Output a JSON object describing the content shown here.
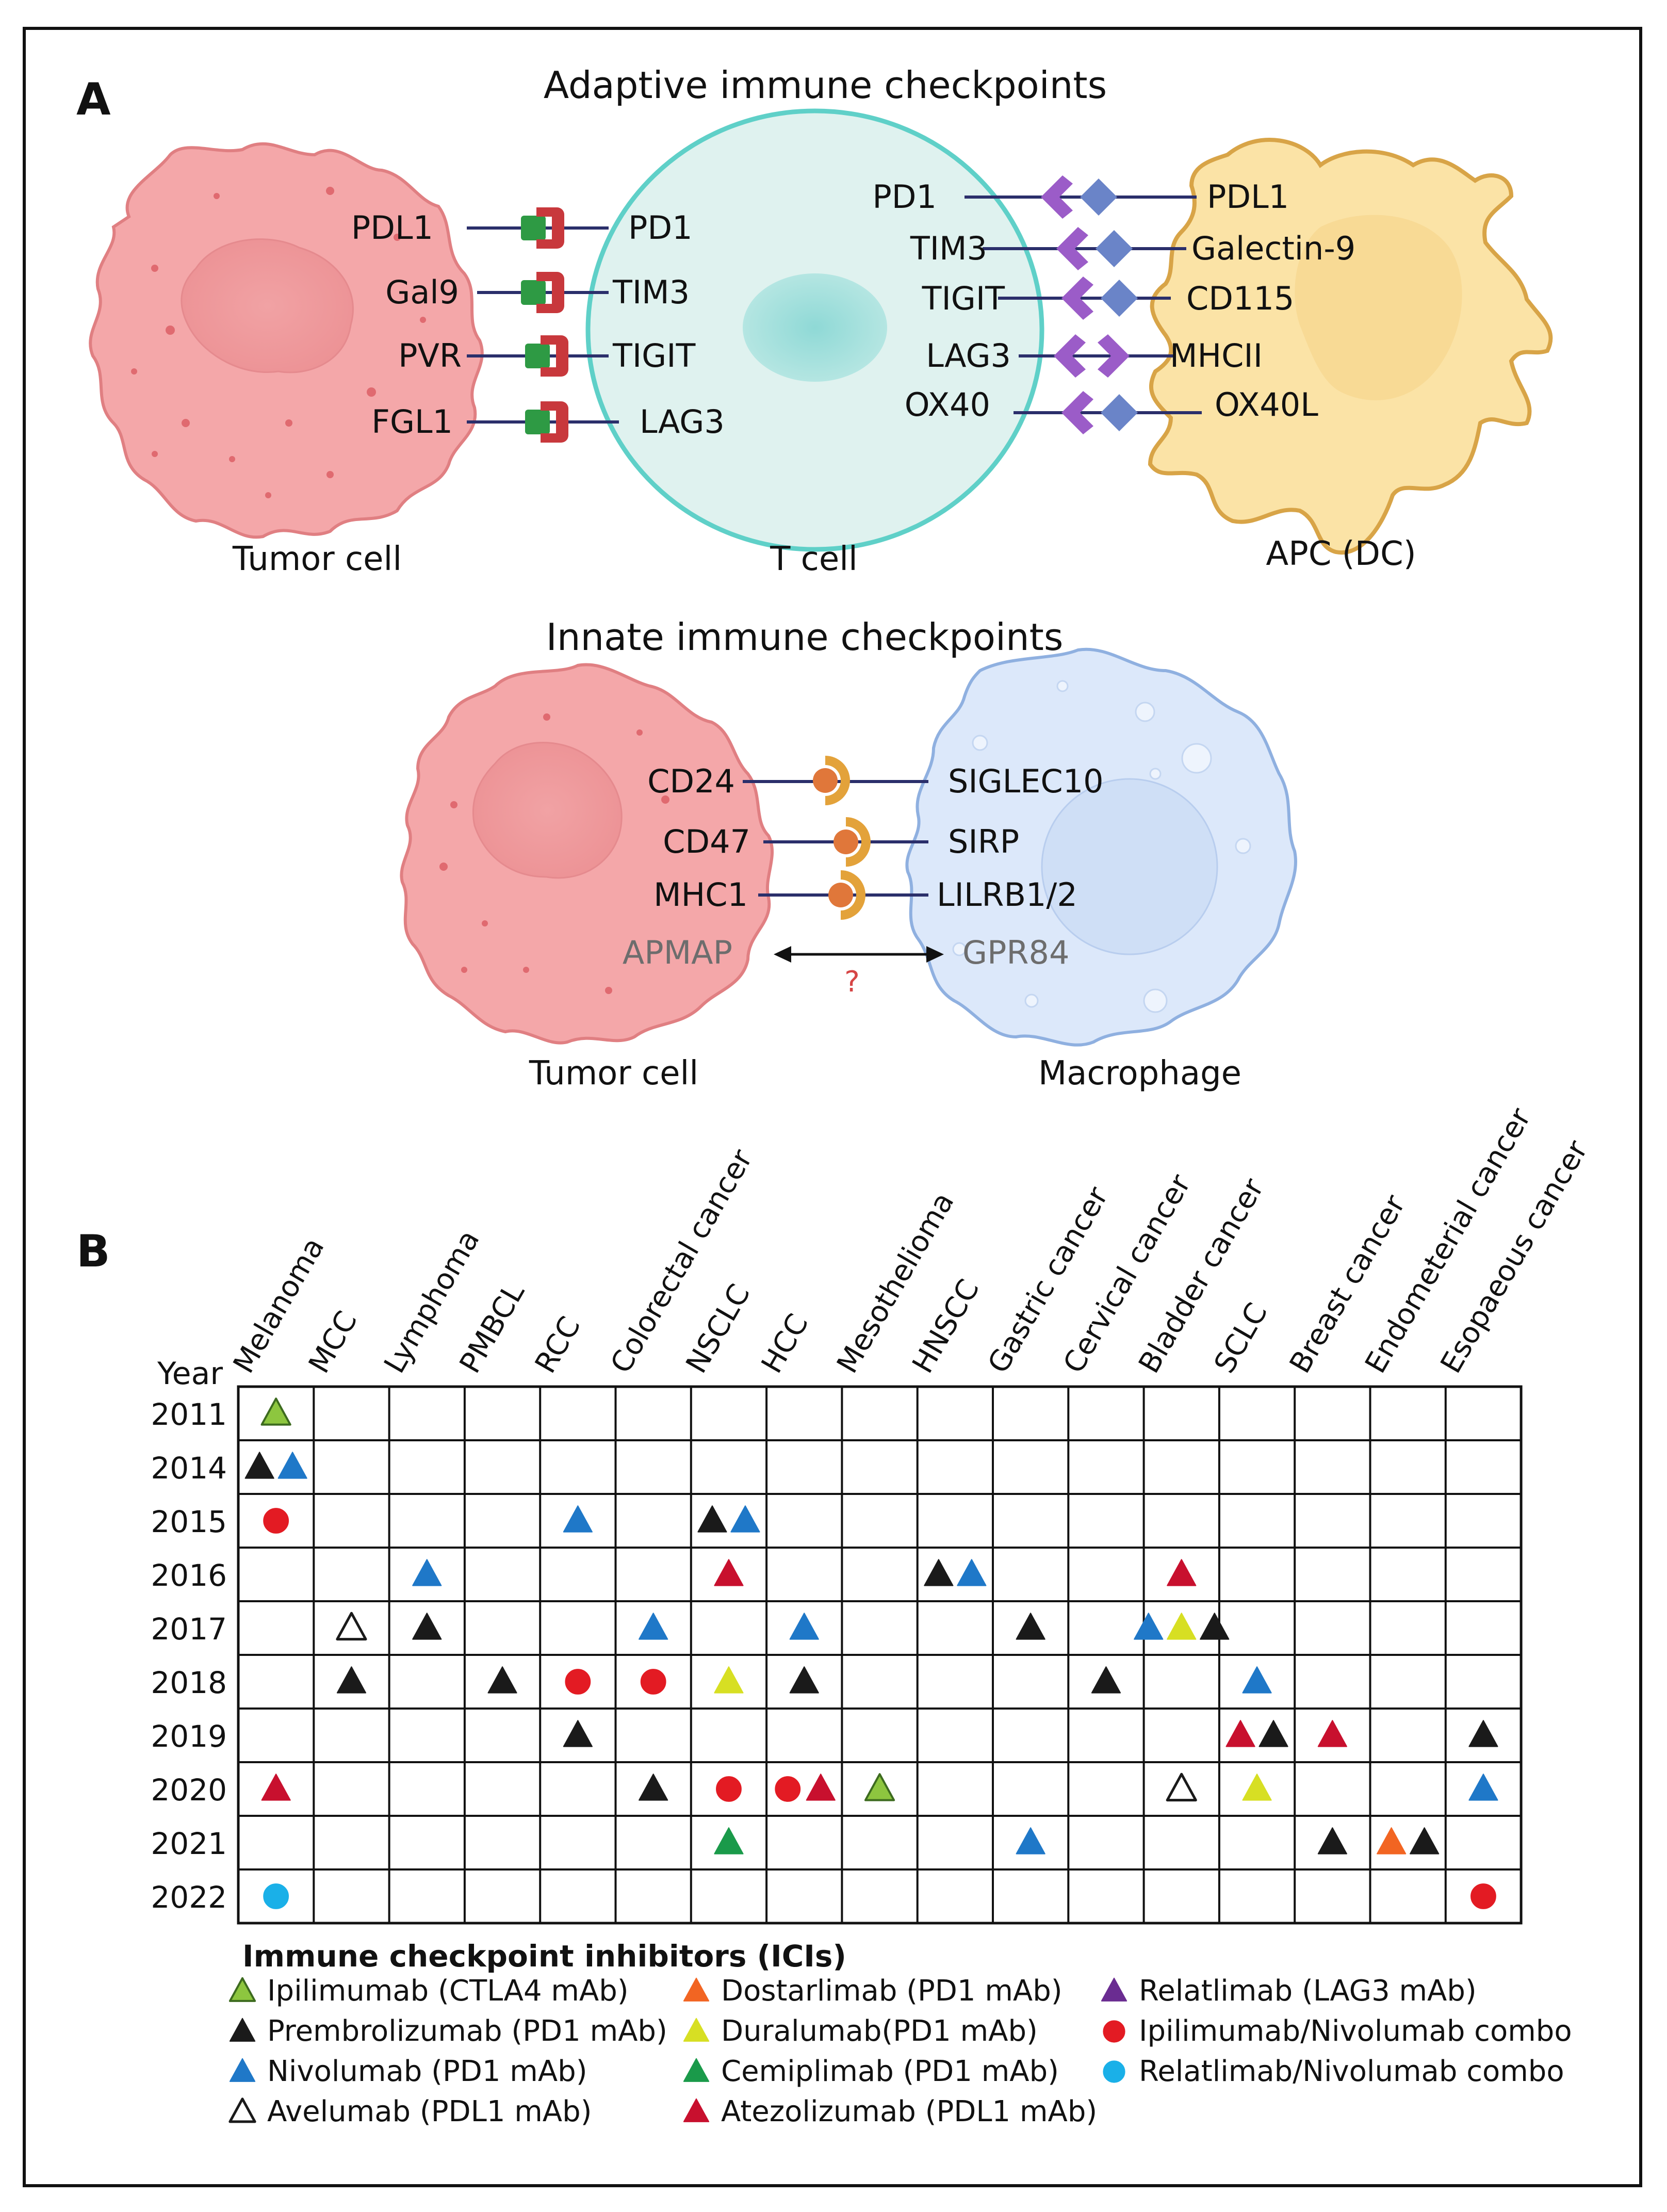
{
  "panel_a": {
    "label": "A",
    "adaptive_title": "Adaptive immune checkpoints",
    "innate_title": "Innate immune checkpoints",
    "tumor_left_labels": [
      "PDL1",
      "Gal9",
      "PVR",
      "FGL1"
    ],
    "tcell_left_labels": [
      "PD1",
      "TIM3",
      "TIGIT",
      "LAG3"
    ],
    "tcell_right_labels": [
      "PD1",
      "TIM3",
      "TIGIT",
      "LAG3",
      "OX40"
    ],
    "apc_labels": [
      "PDL1",
      "Galectin-9",
      "CD115",
      "MHCII",
      "OX40L"
    ],
    "tumor_cell_caption": "Tumor cell",
    "tcell_caption": "T cell",
    "apc_caption": "APC (DC)",
    "innate_tumor_labels": [
      "CD24",
      "CD47",
      "MHC1"
    ],
    "innate_tumor_unknown": "APMAP",
    "macrophage_labels": [
      "SIGLEC10",
      "SIRP",
      "LILRB1/2"
    ],
    "macrophage_unknown": "GPR84",
    "question_mark": "?",
    "innate_tumor_caption": "Tumor cell",
    "macrophage_caption": "Macrophage"
  },
  "panel_b": {
    "label": "B",
    "year_header": "Year",
    "columns": [
      "Melanoma",
      "MCC",
      "Lymphoma",
      "PMBCL",
      "RCC",
      "Colorectal cancer",
      "NSCLC",
      "HCC",
      "Mesothelioma",
      "HNSCC",
      "Gastric cancer",
      "Cervical cancer",
      "Bladder cancer",
      "SCLC",
      "Breast cancer",
      "Endometerial cancer",
      "Esopaeous cancer"
    ],
    "years": [
      "2011",
      "2014",
      "2015",
      "2016",
      "2017",
      "2018",
      "2019",
      "2020",
      "2021",
      "2022"
    ],
    "approvals": [
      {
        "year": "2011",
        "column": "Melanoma",
        "drugs": [
          "ipilimumab"
        ]
      },
      {
        "year": "2014",
        "column": "Melanoma",
        "drugs": [
          "prembrolizumab",
          "nivolumab"
        ]
      },
      {
        "year": "2015",
        "column": "Melanoma",
        "drugs": [
          "ipi_nivo_combo"
        ]
      },
      {
        "year": "2015",
        "column": "RCC",
        "drugs": [
          "nivolumab"
        ]
      },
      {
        "year": "2015",
        "column": "NSCLC",
        "drugs": [
          "prembrolizumab",
          "nivolumab"
        ]
      },
      {
        "year": "2016",
        "column": "Lymphoma",
        "drugs": [
          "nivolumab"
        ]
      },
      {
        "year": "2016",
        "column": "NSCLC",
        "drugs": [
          "atezolizumab"
        ]
      },
      {
        "year": "2016",
        "column": "HNSCC",
        "drugs": [
          "prembrolizumab",
          "nivolumab"
        ]
      },
      {
        "year": "2016",
        "column": "Bladder cancer",
        "drugs": [
          "atezolizumab"
        ]
      },
      {
        "year": "2017",
        "column": "MCC",
        "drugs": [
          "avelumab"
        ]
      },
      {
        "year": "2017",
        "column": "Lymphoma",
        "drugs": [
          "prembrolizumab"
        ]
      },
      {
        "year": "2017",
        "column": "Colorectal cancer",
        "drugs": [
          "nivolumab"
        ]
      },
      {
        "year": "2017",
        "column": "HCC",
        "drugs": [
          "nivolumab"
        ]
      },
      {
        "year": "2017",
        "column": "Gastric cancer",
        "drugs": [
          "prembrolizumab"
        ]
      },
      {
        "year": "2017",
        "column": "Bladder cancer",
        "drugs": [
          "nivolumab",
          "duralumab",
          "prembrolizumab"
        ]
      },
      {
        "year": "2018",
        "column": "MCC",
        "drugs": [
          "prembrolizumab"
        ]
      },
      {
        "year": "2018",
        "column": "PMBCL",
        "drugs": [
          "prembrolizumab"
        ]
      },
      {
        "year": "2018",
        "column": "RCC",
        "drugs": [
          "ipi_nivo_combo"
        ]
      },
      {
        "year": "2018",
        "column": "Colorectal cancer",
        "drugs": [
          "ipi_nivo_combo"
        ]
      },
      {
        "year": "2018",
        "column": "NSCLC",
        "drugs": [
          "duralumab"
        ]
      },
      {
        "year": "2018",
        "column": "HCC",
        "drugs": [
          "prembrolizumab"
        ]
      },
      {
        "year": "2018",
        "column": "Cervical cancer",
        "drugs": [
          "prembrolizumab"
        ]
      },
      {
        "year": "2018",
        "column": "SCLC",
        "drugs": [
          "nivolumab"
        ]
      },
      {
        "year": "2019",
        "column": "RCC",
        "drugs": [
          "prembrolizumab"
        ]
      },
      {
        "year": "2019",
        "column": "SCLC",
        "drugs": [
          "atezolizumab",
          "prembrolizumab"
        ]
      },
      {
        "year": "2019",
        "column": "Breast cancer",
        "drugs": [
          "atezolizumab"
        ]
      },
      {
        "year": "2019",
        "column": "Esopaeous cancer",
        "drugs": [
          "prembrolizumab"
        ]
      },
      {
        "year": "2020",
        "column": "Melanoma",
        "drugs": [
          "atezolizumab"
        ]
      },
      {
        "year": "2020",
        "column": "Colorectal cancer",
        "drugs": [
          "prembrolizumab"
        ]
      },
      {
        "year": "2020",
        "column": "NSCLC",
        "drugs": [
          "ipi_nivo_combo"
        ]
      },
      {
        "year": "2020",
        "column": "HCC",
        "drugs": [
          "ipi_nivo_combo",
          "atezolizumab"
        ]
      },
      {
        "year": "2020",
        "column": "Mesothelioma",
        "drugs": [
          "ipilimumab"
        ]
      },
      {
        "year": "2020",
        "column": "Bladder cancer",
        "drugs": [
          "avelumab"
        ]
      },
      {
        "year": "2020",
        "column": "SCLC",
        "drugs": [
          "duralumab"
        ]
      },
      {
        "year": "2020",
        "column": "Esopaeous cancer",
        "drugs": [
          "nivolumab"
        ]
      },
      {
        "year": "2021",
        "column": "NSCLC",
        "drugs": [
          "cemiplimab"
        ]
      },
      {
        "year": "2021",
        "column": "Gastric cancer",
        "drugs": [
          "nivolumab"
        ]
      },
      {
        "year": "2021",
        "column": "Breast cancer",
        "drugs": [
          "prembrolizumab"
        ]
      },
      {
        "year": "2021",
        "column": "Endometerial cancer",
        "drugs": [
          "dostarlimab",
          "prembrolizumab"
        ]
      },
      {
        "year": "2022",
        "column": "Melanoma",
        "drugs": [
          "rela_nivo_combo"
        ]
      },
      {
        "year": "2022",
        "column": "Esopaeous cancer",
        "drugs": [
          "ipi_nivo_combo"
        ]
      }
    ],
    "legend_title": "Immune checkpoint inhibitors (ICIs)",
    "legend": [
      {
        "key": "ipilimumab",
        "label": "Ipilimumab (CTLA4 mAb)",
        "shape": "triangle",
        "color": "#8dc63f",
        "stroke": "#3d6b1f"
      },
      {
        "key": "prembrolizumab",
        "label": "Prembrolizumab (PD1 mAb)",
        "shape": "triangle",
        "color": "#1a1a1a",
        "stroke": "#1a1a1a"
      },
      {
        "key": "nivolumab",
        "label": "Nivolumab (PD1 mAb)",
        "shape": "triangle",
        "color": "#1f78c8",
        "stroke": "#1f78c8"
      },
      {
        "key": "avelumab",
        "label": "Avelumab (PDL1 mAb)",
        "shape": "triangle-open",
        "color": "#ffffff",
        "stroke": "#1a1a1a"
      },
      {
        "key": "dostarlimab",
        "label": "Dostarlimab (PD1 mAb)",
        "shape": "triangle",
        "color": "#f26522",
        "stroke": "#f26522"
      },
      {
        "key": "duralumab",
        "label": "Duralumab(PD1 mAb)",
        "shape": "triangle",
        "color": "#d7df23",
        "stroke": "#d7df23"
      },
      {
        "key": "cemiplimab",
        "label": "Cemiplimab (PD1 mAb)",
        "shape": "triangle",
        "color": "#1a9a4a",
        "stroke": "#1a9a4a"
      },
      {
        "key": "atezolizumab",
        "label": "Atezolizumab (PDL1 mAb)",
        "shape": "triangle",
        "color": "#c8102e",
        "stroke": "#c8102e"
      },
      {
        "key": "relatlimab",
        "label": "Relatlimab (LAG3 mAb)",
        "shape": "triangle",
        "color": "#6a2c91",
        "stroke": "#6a2c91"
      },
      {
        "key": "ipi_nivo_combo",
        "label": "Ipilimumab/Nivolumab combo",
        "shape": "circle",
        "color": "#e31b23",
        "stroke": "#e31b23"
      },
      {
        "key": "rela_nivo_combo",
        "label": "Relatlimab/Nivolumab combo",
        "shape": "circle",
        "color": "#1ab0e8",
        "stroke": "#1ab0e8"
      }
    ]
  },
  "colors": {
    "tumor_fill": "#f4a7a9",
    "tumor_stroke": "#e07f82",
    "tcell_fill": "#dff2ef",
    "tcell_stroke": "#5fd0c8",
    "apc_fill": "#fbe3a6",
    "apc_stroke": "#d8a447",
    "macrophage_fill": "#dce8fa",
    "macrophage_stroke": "#8fb0e0",
    "receptor_red": "#c8383c",
    "ligand_green": "#2e9a44",
    "receptor_purple": "#9b5cc8",
    "ligand_blue": "#6a84c8",
    "innate_receptor": "#e3a23a",
    "innate_ligand": "#e0773a",
    "line_navy": "#2b2f6b"
  }
}
